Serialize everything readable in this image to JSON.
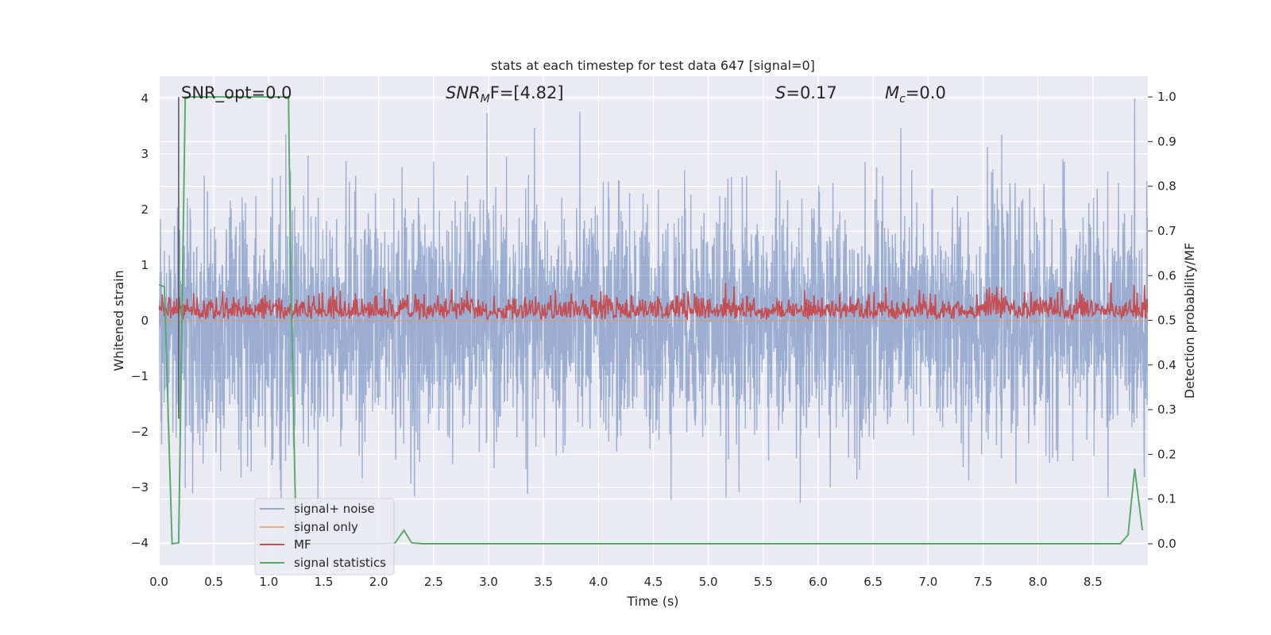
{
  "chart_data": {
    "type": "line",
    "title": "stats at each timestep for test data 647 [signal=0]",
    "xlabel": "Time (s)",
    "ylabel": "Whitened strain",
    "ylabel_right": "Detection probability/MF",
    "xlim": [
      0.0,
      9.0
    ],
    "ylim": [
      -4.4,
      4.4
    ],
    "ylim_right": [
      -0.048,
      1.0464
    ],
    "x_ticks": [
      "0.0",
      "0.5",
      "1.0",
      "1.5",
      "2.0",
      "2.5",
      "3.0",
      "3.5",
      "4.0",
      "4.5",
      "5.0",
      "5.5",
      "6.0",
      "6.5",
      "7.0",
      "7.5",
      "8.0",
      "8.5"
    ],
    "y_ticks": [
      "4",
      "3",
      "2",
      "1",
      "0",
      "−1",
      "−2",
      "−3",
      "−4"
    ],
    "y_ticks_right": [
      "1.0",
      "0.9",
      "0.8",
      "0.7",
      "0.6",
      "0.5",
      "0.4",
      "0.3",
      "0.2",
      "0.1",
      "0.0"
    ],
    "grid": true,
    "legend_position": "lower-left",
    "annotations": {
      "snr_opt": "SNR_opt=0.0",
      "snr_mf_prefix": "SNR",
      "snr_mf_sub": "M",
      "snr_mf_suffix": "F=[4.82]",
      "s_var": "S",
      "s_val": "=0.17",
      "mc_var": "M",
      "mc_sub": "c",
      "mc_val": "=0.0"
    },
    "series": [
      {
        "name": "signal+ noise",
        "color": "#4c72b0",
        "opacity": 0.5,
        "axis": "left",
        "description": "dense whitened noise, roughly symmetric about 0 with peaks up to about ±4",
        "envelope": {
          "typical_amplitude": 2.0,
          "peak_amplitude": 4.0
        }
      },
      {
        "name": "signal only",
        "color": "#dd8452",
        "axis": "left",
        "x": [
          0.0,
          9.0
        ],
        "y": [
          0.0,
          0.0
        ]
      },
      {
        "name": "MF",
        "color": "#c44e52",
        "axis": "right",
        "description": "matched-filter output fluctuating mostly between 0.5 and 0.58 with spikes up to ~0.61",
        "range_typical": [
          0.5,
          0.57
        ],
        "peak": 0.61
      },
      {
        "name": "signal statistics",
        "color": "#55a868",
        "axis": "right",
        "x": [
          0.0,
          0.05,
          0.12,
          0.18,
          0.24,
          0.3,
          1.0,
          1.18,
          1.2,
          1.25,
          1.4,
          2.0,
          2.15,
          2.23,
          2.3,
          2.4,
          3.0,
          5.0,
          7.0,
          8.5,
          8.75,
          8.82,
          8.88,
          8.95
        ],
        "y": [
          0.58,
          0.575,
          0.0,
          0.002,
          1.0,
          1.0,
          1.0,
          1.0,
          0.6,
          0.0,
          0.0,
          0.0,
          0.002,
          0.03,
          0.002,
          0.0,
          0.0,
          0.0,
          0.0,
          0.0,
          0.0,
          0.02,
          0.168,
          0.03
        ]
      }
    ],
    "marker_line": {
      "x": 0.18,
      "color": "#555555"
    }
  }
}
